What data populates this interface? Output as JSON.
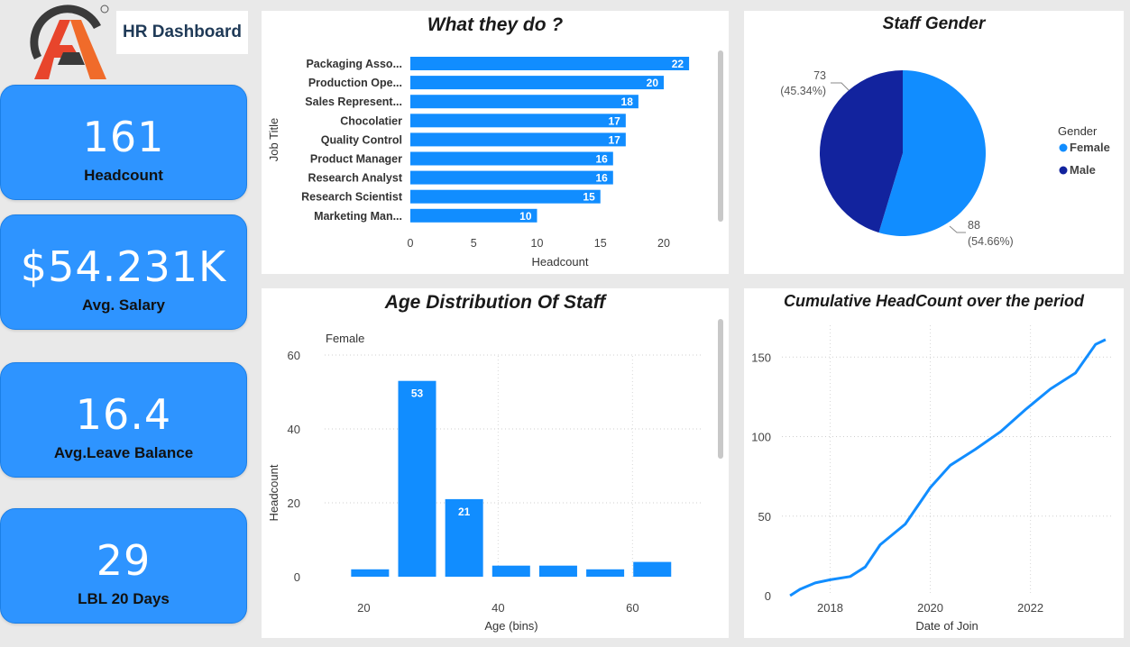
{
  "header": {
    "title": "HR Dashboard",
    "logo_icon": "logo-icon"
  },
  "kpis": [
    {
      "value": "161",
      "label": "Headcount"
    },
    {
      "value": "$54.231K",
      "label": "Avg. Salary"
    },
    {
      "value": "16.4",
      "label": "Avg.Leave Balance"
    },
    {
      "value": "29",
      "label": "LBL 20 Days"
    }
  ],
  "colors": {
    "accent": "#2e94ff",
    "bar": "#118dff",
    "male": "#12239e",
    "female": "#118dff"
  },
  "chart_data": [
    {
      "type": "bar",
      "orientation": "horizontal",
      "title": "What they do ?",
      "xlabel": "Headcount",
      "ylabel": "Job Title",
      "categories": [
        "Packaging Asso...",
        "Production Ope...",
        "Sales Represent...",
        "Chocolatier",
        "Quality Control",
        "Product Manager",
        "Research Analyst",
        "Research Scientist",
        "Marketing Man..."
      ],
      "values": [
        22,
        20,
        18,
        17,
        17,
        16,
        16,
        15,
        10
      ],
      "xticks": [
        0,
        5,
        10,
        15,
        20
      ],
      "xlim": [
        0,
        22
      ]
    },
    {
      "type": "pie",
      "title": "Staff Gender",
      "legend_title": "Gender",
      "legend_position": "right",
      "slices": [
        {
          "name": "Female",
          "value": 88,
          "label_value": "88",
          "label_pct": "(54.66%)"
        },
        {
          "name": "Male",
          "value": 73,
          "label_value": "73",
          "label_pct": "(45.34%)"
        }
      ]
    },
    {
      "type": "bar",
      "title": "Age Distribution Of Staff",
      "xlabel": "Age (bins)",
      "ylabel": "Headcount",
      "filter_label": "Female",
      "bins": [
        20,
        27,
        34,
        41,
        48,
        55,
        62
      ],
      "values": [
        2,
        53,
        21,
        3,
        3,
        2,
        4
      ],
      "data_labels": [
        "",
        "53",
        "21",
        "",
        "",
        "",
        ""
      ],
      "xticks": [
        20,
        40,
        60
      ],
      "yticks": [
        0,
        20,
        40,
        60
      ],
      "xlim": [
        17,
        72
      ],
      "ylim": [
        0,
        60
      ]
    },
    {
      "type": "line",
      "title": "Cumulative HeadCount over the period",
      "xlabel": "Date of Join",
      "ylabel": "",
      "x": [
        2017.2,
        2017.4,
        2017.7,
        2018.0,
        2018.4,
        2018.7,
        2019.0,
        2019.5,
        2020.0,
        2020.4,
        2020.9,
        2021.4,
        2021.9,
        2022.4,
        2022.9,
        2023.3,
        2023.5
      ],
      "y": [
        0,
        4,
        8,
        10,
        12,
        18,
        32,
        45,
        68,
        82,
        92,
        103,
        117,
        130,
        140,
        158,
        161
      ],
      "xticks": [
        "2018",
        "2020",
        "2022"
      ],
      "yticks": [
        0,
        50,
        100,
        150
      ],
      "xlim": [
        2017.0,
        2023.7
      ],
      "ylim": [
        0,
        170
      ]
    }
  ]
}
